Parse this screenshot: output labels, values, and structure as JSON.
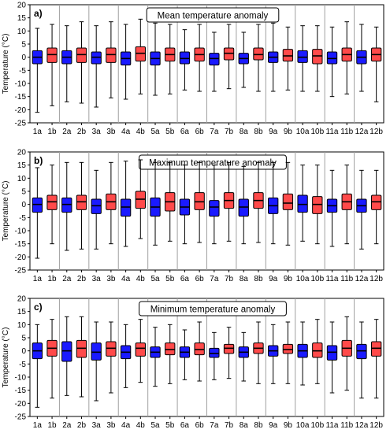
{
  "figure": {
    "colors": {
      "a": "#1a1aff",
      "b": "#ff4a4a",
      "box_edge": "#000000",
      "divider": "#a0a0a0",
      "axis": "#000000"
    }
  },
  "chart_data": [
    {
      "type": "box",
      "panel_label": "a)",
      "title": "Mean temperature anomaly",
      "xlabel": "",
      "ylabel": "Temperature (°C)",
      "ylim": [
        -25,
        20
      ],
      "yticks": [
        -25,
        -20,
        -15,
        -10,
        -5,
        0,
        5,
        10,
        15,
        20
      ],
      "categories": [
        "1a",
        "1b",
        "2a",
        "2b",
        "3a",
        "3b",
        "4a",
        "4b",
        "5a",
        "5b",
        "6a",
        "6b",
        "7a",
        "7b",
        "8a",
        "8b",
        "9a",
        "9b",
        "10a",
        "10b",
        "11a",
        "11b",
        "12a",
        "12b"
      ],
      "boxes": [
        {
          "min": -21,
          "q1": -2.5,
          "median": 0,
          "q3": 2.5,
          "max": 11
        },
        {
          "min": -18.5,
          "q1": -2,
          "median": 1,
          "q3": 3.5,
          "max": 12.5
        },
        {
          "min": -17,
          "q1": -2.5,
          "median": 0,
          "q3": 2.5,
          "max": 12
        },
        {
          "min": -17.5,
          "q1": -2,
          "median": 1,
          "q3": 3.5,
          "max": 13.5
        },
        {
          "min": -19,
          "q1": -2.5,
          "median": 0,
          "q3": 2,
          "max": 12
        },
        {
          "min": -15.5,
          "q1": -2,
          "median": 1,
          "q3": 3.5,
          "max": 13.5
        },
        {
          "min": -16,
          "q1": -3,
          "median": -0.5,
          "q3": 2,
          "max": 12.5
        },
        {
          "min": -14,
          "q1": -1.5,
          "median": 1.5,
          "q3": 4,
          "max": 14.5
        },
        {
          "min": -14.5,
          "q1": -3,
          "median": -0.5,
          "q3": 2,
          "max": 13
        },
        {
          "min": -14,
          "q1": -1.5,
          "median": 1,
          "q3": 3.5,
          "max": 12.5
        },
        {
          "min": -12.5,
          "q1": -2.5,
          "median": -0.5,
          "q3": 2,
          "max": 10.5
        },
        {
          "min": -13,
          "q1": -1.5,
          "median": 1,
          "q3": 3.5,
          "max": 12.5
        },
        {
          "min": -13,
          "q1": -3,
          "median": -0.5,
          "q3": 1.5,
          "max": 9.5
        },
        {
          "min": -12,
          "q1": -1,
          "median": 1.5,
          "q3": 3.5,
          "max": 12.5
        },
        {
          "min": -11.5,
          "q1": -2.5,
          "median": -0.5,
          "q3": 1.5,
          "max": 9.5
        },
        {
          "min": -13,
          "q1": -1,
          "median": 1,
          "q3": 3.5,
          "max": 12.5
        },
        {
          "min": -13,
          "q1": -2,
          "median": 0,
          "q3": 2,
          "max": 13
        },
        {
          "min": -12.5,
          "q1": -1.5,
          "median": 0.5,
          "q3": 3,
          "max": 11.5
        },
        {
          "min": -13,
          "q1": -2,
          "median": 0,
          "q3": 2.5,
          "max": 12
        },
        {
          "min": -13,
          "q1": -2.5,
          "median": 0.5,
          "q3": 3,
          "max": 12
        },
        {
          "min": -15,
          "q1": -2.5,
          "median": -0.5,
          "q3": 2,
          "max": 11.5
        },
        {
          "min": -14,
          "q1": -1.5,
          "median": 1,
          "q3": 3.5,
          "max": 13.5
        },
        {
          "min": -13,
          "q1": -2.5,
          "median": 0,
          "q3": 2.5,
          "max": 12.5
        },
        {
          "min": -17,
          "q1": -1.5,
          "median": 1,
          "q3": 3.5,
          "max": 11.5
        }
      ]
    },
    {
      "type": "box",
      "panel_label": "b)",
      "title": "Maximum temperature anomaly",
      "xlabel": "",
      "ylabel": "Temperature (°C)",
      "ylim": [
        -25,
        20
      ],
      "yticks": [
        -25,
        -20,
        -15,
        -10,
        -5,
        0,
        5,
        10,
        15,
        20
      ],
      "categories": [
        "1a",
        "1b",
        "2a",
        "2b",
        "3a",
        "3b",
        "4a",
        "4b",
        "5a",
        "5b",
        "6a",
        "6b",
        "7a",
        "7b",
        "8a",
        "8b",
        "9a",
        "9b",
        "10a",
        "10b",
        "11a",
        "11b",
        "12a",
        "12b"
      ],
      "boxes": [
        {
          "min": -20.5,
          "q1": -3,
          "median": 0,
          "q3": 2.5,
          "max": 14
        },
        {
          "min": -15,
          "q1": -2,
          "median": 1,
          "q3": 3.5,
          "max": 15
        },
        {
          "min": -17.5,
          "q1": -3,
          "median": 0,
          "q3": 2.5,
          "max": 16
        },
        {
          "min": -17,
          "q1": -2,
          "median": 1,
          "q3": 3.5,
          "max": 16
        },
        {
          "min": -17,
          "q1": -3.5,
          "median": -0.5,
          "q3": 2,
          "max": 13
        },
        {
          "min": -15,
          "q1": -2,
          "median": 1,
          "q3": 4,
          "max": 16
        },
        {
          "min": -16,
          "q1": -4.5,
          "median": -1,
          "q3": 2,
          "max": 16.5
        },
        {
          "min": -13,
          "q1": -1.5,
          "median": 2,
          "q3": 5,
          "max": 17
        },
        {
          "min": -15.5,
          "q1": -4.5,
          "median": -1,
          "q3": 2.5,
          "max": 16
        },
        {
          "min": -14,
          "q1": -2.5,
          "median": 1,
          "q3": 4.5,
          "max": 16
        },
        {
          "min": -15,
          "q1": -4,
          "median": -1,
          "q3": 2,
          "max": 15
        },
        {
          "min": -14.5,
          "q1": -2,
          "median": 1,
          "q3": 4.5,
          "max": 16
        },
        {
          "min": -15,
          "q1": -4.5,
          "median": -1,
          "q3": 1.5,
          "max": 15
        },
        {
          "min": -14,
          "q1": -1.5,
          "median": 1.5,
          "q3": 4.5,
          "max": 16
        },
        {
          "min": -15,
          "q1": -4.5,
          "median": -1,
          "q3": 2,
          "max": 14.5
        },
        {
          "min": -14.5,
          "q1": -1.5,
          "median": 1.5,
          "q3": 4.5,
          "max": 16
        },
        {
          "min": -15,
          "q1": -3.5,
          "median": -0.5,
          "q3": 2.5,
          "max": 16
        },
        {
          "min": -15.5,
          "q1": -2,
          "median": 0.5,
          "q3": 4,
          "max": 16
        },
        {
          "min": -14,
          "q1": -3,
          "median": 0,
          "q3": 3.5,
          "max": 15
        },
        {
          "min": -15,
          "q1": -3.5,
          "median": 0,
          "q3": 3,
          "max": 15
        },
        {
          "min": -16,
          "q1": -3,
          "median": -0.5,
          "q3": 2,
          "max": 13
        },
        {
          "min": -15,
          "q1": -2,
          "median": 1,
          "q3": 4,
          "max": 15
        },
        {
          "min": -17,
          "q1": -3,
          "median": -0.5,
          "q3": 2,
          "max": 13
        },
        {
          "min": -15,
          "q1": -2,
          "median": 1,
          "q3": 3.5,
          "max": 13
        }
      ]
    },
    {
      "type": "box",
      "panel_label": "c)",
      "title": "Minimum temperature anomaly",
      "xlabel": "",
      "ylabel": "Temperature (°C)",
      "ylim": [
        -25,
        20
      ],
      "yticks": [
        -25,
        -20,
        -15,
        -10,
        -5,
        0,
        5,
        10,
        15,
        20
      ],
      "categories": [
        "1a",
        "1b",
        "2a",
        "2b",
        "3a",
        "3b",
        "4a",
        "4b",
        "5a",
        "5b",
        "6a",
        "6b",
        "7a",
        "7b",
        "8a",
        "8b",
        "9a",
        "9b",
        "10a",
        "10b",
        "11a",
        "11b",
        "12a",
        "12b"
      ],
      "boxes": [
        {
          "min": -21.5,
          "q1": -3,
          "median": 0,
          "q3": 3,
          "max": 10
        },
        {
          "min": -18,
          "q1": -2,
          "median": 1,
          "q3": 4,
          "max": 12
        },
        {
          "min": -17,
          "q1": -4,
          "median": 0,
          "q3": 3.5,
          "max": 13
        },
        {
          "min": -17.5,
          "q1": -2.5,
          "median": 1,
          "q3": 4,
          "max": 13
        },
        {
          "min": -19,
          "q1": -3.5,
          "median": -0.5,
          "q3": 3,
          "max": 11
        },
        {
          "min": -16,
          "q1": -2,
          "median": 1,
          "q3": 3.5,
          "max": 11
        },
        {
          "min": -14,
          "q1": -3,
          "median": -0.5,
          "q3": 2,
          "max": 10
        },
        {
          "min": -12,
          "q1": -2,
          "median": 1,
          "q3": 3,
          "max": 12
        },
        {
          "min": -13.5,
          "q1": -2.5,
          "median": -0.5,
          "q3": 1.5,
          "max": 9
        },
        {
          "min": -12.5,
          "q1": -1.5,
          "median": 0.5,
          "q3": 3,
          "max": 10
        },
        {
          "min": -11,
          "q1": -2.5,
          "median": -0.5,
          "q3": 1.5,
          "max": 8
        },
        {
          "min": -11.5,
          "q1": -1.5,
          "median": 0.5,
          "q3": 3,
          "max": 11
        },
        {
          "min": -11,
          "q1": -2.5,
          "median": -1,
          "q3": 1,
          "max": 7
        },
        {
          "min": -10.5,
          "q1": -1,
          "median": 1,
          "q3": 2.5,
          "max": 9
        },
        {
          "min": -11.5,
          "q1": -2.5,
          "median": -0.5,
          "q3": 1.5,
          "max": 7
        },
        {
          "min": -12.5,
          "q1": -1,
          "median": 1,
          "q3": 3,
          "max": 11
        },
        {
          "min": -12.5,
          "q1": -2,
          "median": 0,
          "q3": 2,
          "max": 10
        },
        {
          "min": -12.5,
          "q1": -1,
          "median": 0.5,
          "q3": 2.5,
          "max": 11
        },
        {
          "min": -13,
          "q1": -2.5,
          "median": 0,
          "q3": 2.5,
          "max": 11
        },
        {
          "min": -12.5,
          "q1": -2.5,
          "median": 0,
          "q3": 3,
          "max": 12
        },
        {
          "min": -16,
          "q1": -3.5,
          "median": -0.5,
          "q3": 2,
          "max": 11
        },
        {
          "min": -15,
          "q1": -2,
          "median": 1,
          "q3": 4,
          "max": 13
        },
        {
          "min": -18,
          "q1": -3,
          "median": 0,
          "q3": 2.5,
          "max": 11
        },
        {
          "min": -18,
          "q1": -2,
          "median": 1,
          "q3": 3.5,
          "max": 12
        }
      ]
    }
  ]
}
